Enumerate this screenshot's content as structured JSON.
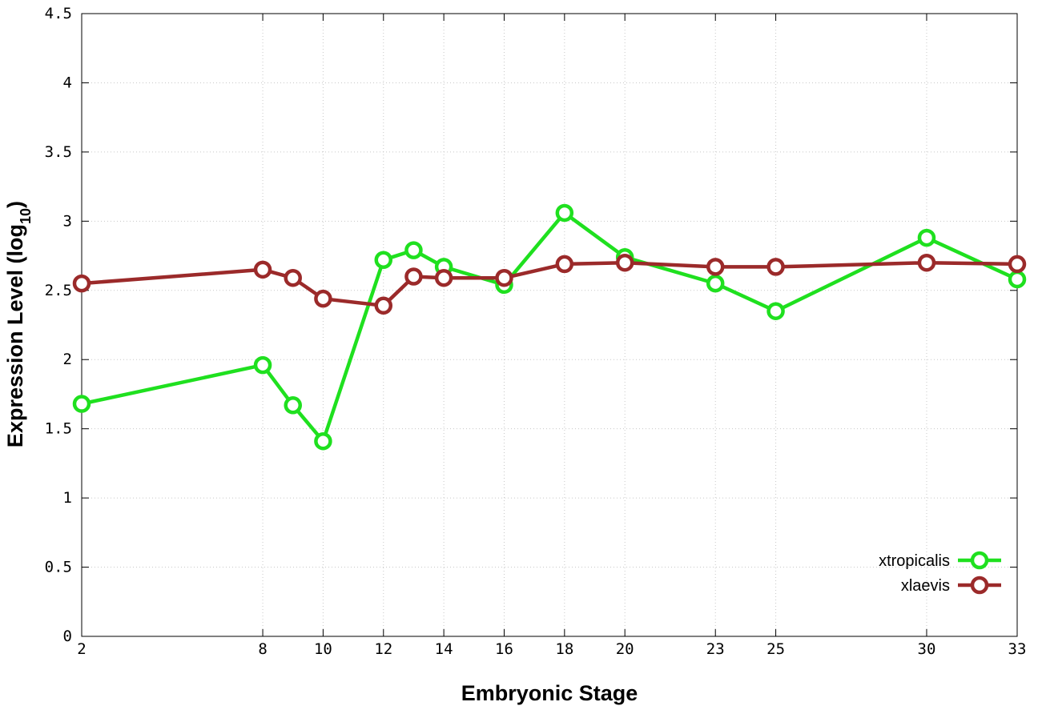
{
  "chart_data": {
    "type": "line",
    "xlabel": "Embryonic Stage",
    "ylabel_main": "Expression Level (log",
    "ylabel_sub": "10",
    "ylabel_close": ")",
    "x_categories": [
      "2",
      "8",
      "10",
      "12",
      "14",
      "16",
      "18",
      "20",
      "23",
      "25",
      "30",
      "33"
    ],
    "ylim": [
      0,
      4.5
    ],
    "y_ticks": [
      "0",
      "0.5",
      "1",
      "1.5",
      "2",
      "2.5",
      "3",
      "3.5",
      "4",
      "4.5"
    ],
    "grid": true,
    "legend_position": "bottom-right",
    "series": [
      {
        "name": "xtropicalis",
        "color": "#1fe01f",
        "points": [
          {
            "x": 2,
            "y": 1.68
          },
          {
            "x": 8,
            "y": 1.96
          },
          {
            "x": 9,
            "y": 1.67
          },
          {
            "x": 10,
            "y": 1.41
          },
          {
            "x": 12,
            "y": 2.72
          },
          {
            "x": 13,
            "y": 2.79
          },
          {
            "x": 14,
            "y": 2.67
          },
          {
            "x": 16,
            "y": 2.54
          },
          {
            "x": 18,
            "y": 3.06
          },
          {
            "x": 20,
            "y": 2.74
          },
          {
            "x": 23,
            "y": 2.55
          },
          {
            "x": 25,
            "y": 2.35
          },
          {
            "x": 30,
            "y": 2.88
          },
          {
            "x": 33,
            "y": 2.58
          }
        ]
      },
      {
        "name": "xlaevis",
        "color": "#9b2a2a",
        "points": [
          {
            "x": 2,
            "y": 2.55
          },
          {
            "x": 8,
            "y": 2.65
          },
          {
            "x": 9,
            "y": 2.59
          },
          {
            "x": 10,
            "y": 2.44
          },
          {
            "x": 12,
            "y": 2.39
          },
          {
            "x": 13,
            "y": 2.6
          },
          {
            "x": 14,
            "y": 2.59
          },
          {
            "x": 16,
            "y": 2.59
          },
          {
            "x": 18,
            "y": 2.69
          },
          {
            "x": 20,
            "y": 2.7
          },
          {
            "x": 23,
            "y": 2.67
          },
          {
            "x": 25,
            "y": 2.67
          },
          {
            "x": 30,
            "y": 2.7
          },
          {
            "x": 33,
            "y": 2.69
          }
        ]
      }
    ]
  }
}
